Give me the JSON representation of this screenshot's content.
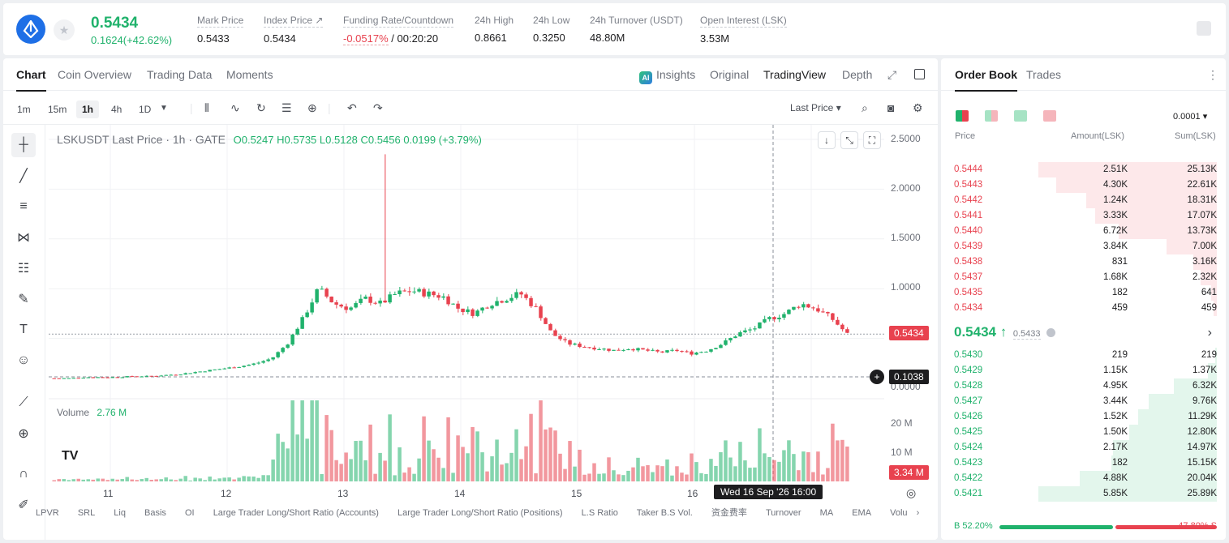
{
  "header": {
    "price": "0.5434",
    "change": "0.1624(+42.62%)",
    "stats": [
      {
        "label": "Mark Price",
        "value": "0.5433"
      },
      {
        "label": "Index Price ↗",
        "value": "0.5434"
      },
      {
        "label": "Funding Rate/Countdown",
        "value_red": "-0.0517%",
        "value": "/ 00:20:20"
      },
      {
        "label": "24h High",
        "value": "0.8661"
      },
      {
        "label": "24h Low",
        "value": "0.3250"
      },
      {
        "label": "24h Turnover (USDT)",
        "value": "48.80M"
      },
      {
        "label": "Open Interest (LSK)",
        "value": "3.53M"
      }
    ]
  },
  "chart_tabs": [
    "Chart",
    "Coin Overview",
    "Trading Data",
    "Moments"
  ],
  "view_tabs": {
    "insights": "Insights",
    "original": "Original",
    "tradingview": "TradingView",
    "depth": "Depth"
  },
  "timeframes": [
    "1m",
    "15m",
    "1h",
    "4h",
    "1D"
  ],
  "last_price_select": "Last Price ▾",
  "legend": {
    "symbol": "LSKUSDT Last Price · 1h · GATE",
    "o": "O0.5247",
    "h": "H0.5735",
    "l": "L0.5128",
    "c": "C0.5456",
    "chg": "0.0199 (+3.79%)"
  },
  "volume_legend": {
    "label": "Volume",
    "value": "2.76 M"
  },
  "price_axis": [
    "2.5000",
    "2.0000",
    "1.5000",
    "1.0000",
    "0.0000"
  ],
  "volume_axis": [
    "20 M",
    "10 M"
  ],
  "tags": {
    "last": "0.5434",
    "cross": "0.1038",
    "vol": "3.34 M"
  },
  "time_axis": [
    "11",
    "12",
    "13",
    "14",
    "15",
    "16"
  ],
  "time_tag": "Wed 16 Sep '26   16:00",
  "indicators": [
    "LPVR",
    "SRL",
    "Liq",
    "Basis",
    "OI",
    "Large Trader Long/Short Ratio (Accounts)",
    "Large Trader Long/Short Ratio (Positions)",
    "L.S Ratio",
    "Taker B.S Vol.",
    "资金费率",
    "Turnover",
    "MA",
    "EMA",
    "Volu"
  ],
  "chart_data": {
    "type": "candlestick",
    "symbol": "LSKUSDT",
    "interval": "1h",
    "ylim": [
      0,
      2.5
    ],
    "x_ticks": [
      "11",
      "12",
      "13",
      "14",
      "15",
      "16"
    ],
    "price_series": [
      0.1,
      0.1,
      0.11,
      0.11,
      0.11,
      0.12,
      0.12,
      0.13,
      0.14,
      0.16,
      0.18,
      0.2,
      0.22,
      0.25,
      0.3,
      0.45,
      0.7,
      1.0,
      0.85,
      0.8,
      0.9,
      0.85,
      0.95,
      0.98,
      0.95,
      0.92,
      0.8,
      0.75,
      0.85,
      0.9,
      0.95,
      0.8,
      0.55,
      0.45,
      0.42,
      0.4,
      0.38,
      0.4,
      0.38,
      0.36,
      0.38,
      0.35,
      0.38,
      0.45,
      0.55,
      0.6,
      0.7,
      0.75,
      0.85,
      0.8,
      0.7,
      0.5434
    ],
    "last_price": 0.5434
  },
  "orderbook": {
    "tabs": [
      "Order Book",
      "Trades"
    ],
    "precision": "0.0001 ▾",
    "headers": [
      "Price",
      "Amount(LSK)",
      "Sum(LSK)"
    ],
    "asks": [
      {
        "p": "0.5444",
        "a": "2.51K",
        "s": "25.13K",
        "w": 100
      },
      {
        "p": "0.5443",
        "a": "4.30K",
        "s": "22.61K",
        "w": 90
      },
      {
        "p": "0.5442",
        "a": "1.24K",
        "s": "18.31K",
        "w": 73
      },
      {
        "p": "0.5441",
        "a": "3.33K",
        "s": "17.07K",
        "w": 68
      },
      {
        "p": "0.5440",
        "a": "6.72K",
        "s": "13.73K",
        "w": 55
      },
      {
        "p": "0.5439",
        "a": "3.84K",
        "s": "7.00K",
        "w": 28
      },
      {
        "p": "0.5438",
        "a": "831",
        "s": "3.16K",
        "w": 13
      },
      {
        "p": "0.5437",
        "a": "1.68K",
        "s": "2.32K",
        "w": 9
      },
      {
        "p": "0.5435",
        "a": "182",
        "s": "641",
        "w": 3
      },
      {
        "p": "0.5434",
        "a": "459",
        "s": "459",
        "w": 2
      }
    ],
    "mid_price": "0.5434 ↑",
    "mid_mark": "0.5433",
    "bids": [
      {
        "p": "0.5430",
        "a": "219",
        "s": "219",
        "w": 1
      },
      {
        "p": "0.5429",
        "a": "1.15K",
        "s": "1.37K",
        "w": 5
      },
      {
        "p": "0.5428",
        "a": "4.95K",
        "s": "6.32K",
        "w": 24
      },
      {
        "p": "0.5427",
        "a": "3.44K",
        "s": "9.76K",
        "w": 38
      },
      {
        "p": "0.5426",
        "a": "1.52K",
        "s": "11.29K",
        "w": 44
      },
      {
        "p": "0.5425",
        "a": "1.50K",
        "s": "12.80K",
        "w": 49
      },
      {
        "p": "0.5424",
        "a": "2.17K",
        "s": "14.97K",
        "w": 58
      },
      {
        "p": "0.5423",
        "a": "182",
        "s": "15.15K",
        "w": 59
      },
      {
        "p": "0.5422",
        "a": "4.88K",
        "s": "20.04K",
        "w": 77
      },
      {
        "p": "0.5421",
        "a": "5.85K",
        "s": "25.89K",
        "w": 100
      }
    ],
    "buy_ratio": "B 52.20%",
    "sell_ratio": "47.80% S",
    "buy_fraction": 0.522
  },
  "colors": {
    "up": "#20b26c",
    "down": "#e8424f"
  }
}
